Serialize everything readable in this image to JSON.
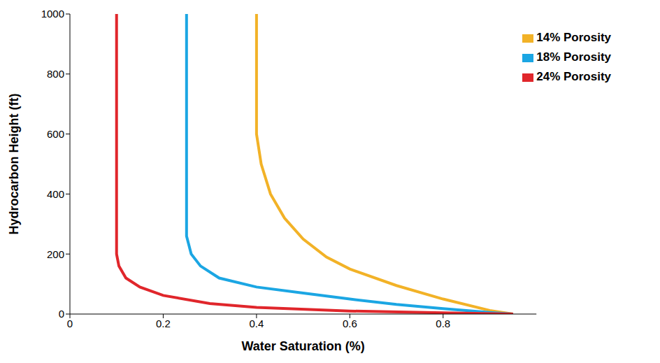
{
  "chart_data": {
    "type": "line",
    "x_label": "Water Saturation (%)",
    "y_label": "Hydrocarbon Height (ft)",
    "xlim": [
      0,
      1
    ],
    "xticks": [
      0,
      0.2,
      0.4,
      0.6,
      0.8
    ],
    "ylim": [
      0,
      1000
    ],
    "yticks": [
      0,
      200,
      400,
      600,
      800,
      1000
    ],
    "grid": false,
    "legend": "top-right",
    "series": [
      {
        "name": "14% Porosity",
        "color": "#f2b227",
        "x": [
          0.4,
          0.4,
          0.41,
          0.43,
          0.46,
          0.5,
          0.55,
          0.6,
          0.7,
          0.8,
          0.9,
          0.95
        ],
        "values": [
          1000,
          600,
          500,
          400,
          320,
          250,
          190,
          150,
          95,
          50,
          12,
          0
        ]
      },
      {
        "name": "18% Porosity",
        "color": "#1ba6e3",
        "x": [
          0.25,
          0.25,
          0.26,
          0.28,
          0.32,
          0.4,
          0.5,
          0.6,
          0.7,
          0.8,
          0.9,
          0.95
        ],
        "values": [
          1000,
          260,
          200,
          160,
          120,
          90,
          70,
          50,
          32,
          18,
          5,
          0
        ]
      },
      {
        "name": "24% Porosity",
        "color": "#e0262b",
        "x": [
          0.1,
          0.1,
          0.105,
          0.12,
          0.15,
          0.2,
          0.3,
          0.4,
          0.6,
          0.8,
          0.95
        ],
        "values": [
          1000,
          200,
          160,
          120,
          90,
          62,
          35,
          22,
          10,
          4,
          0
        ]
      }
    ]
  }
}
